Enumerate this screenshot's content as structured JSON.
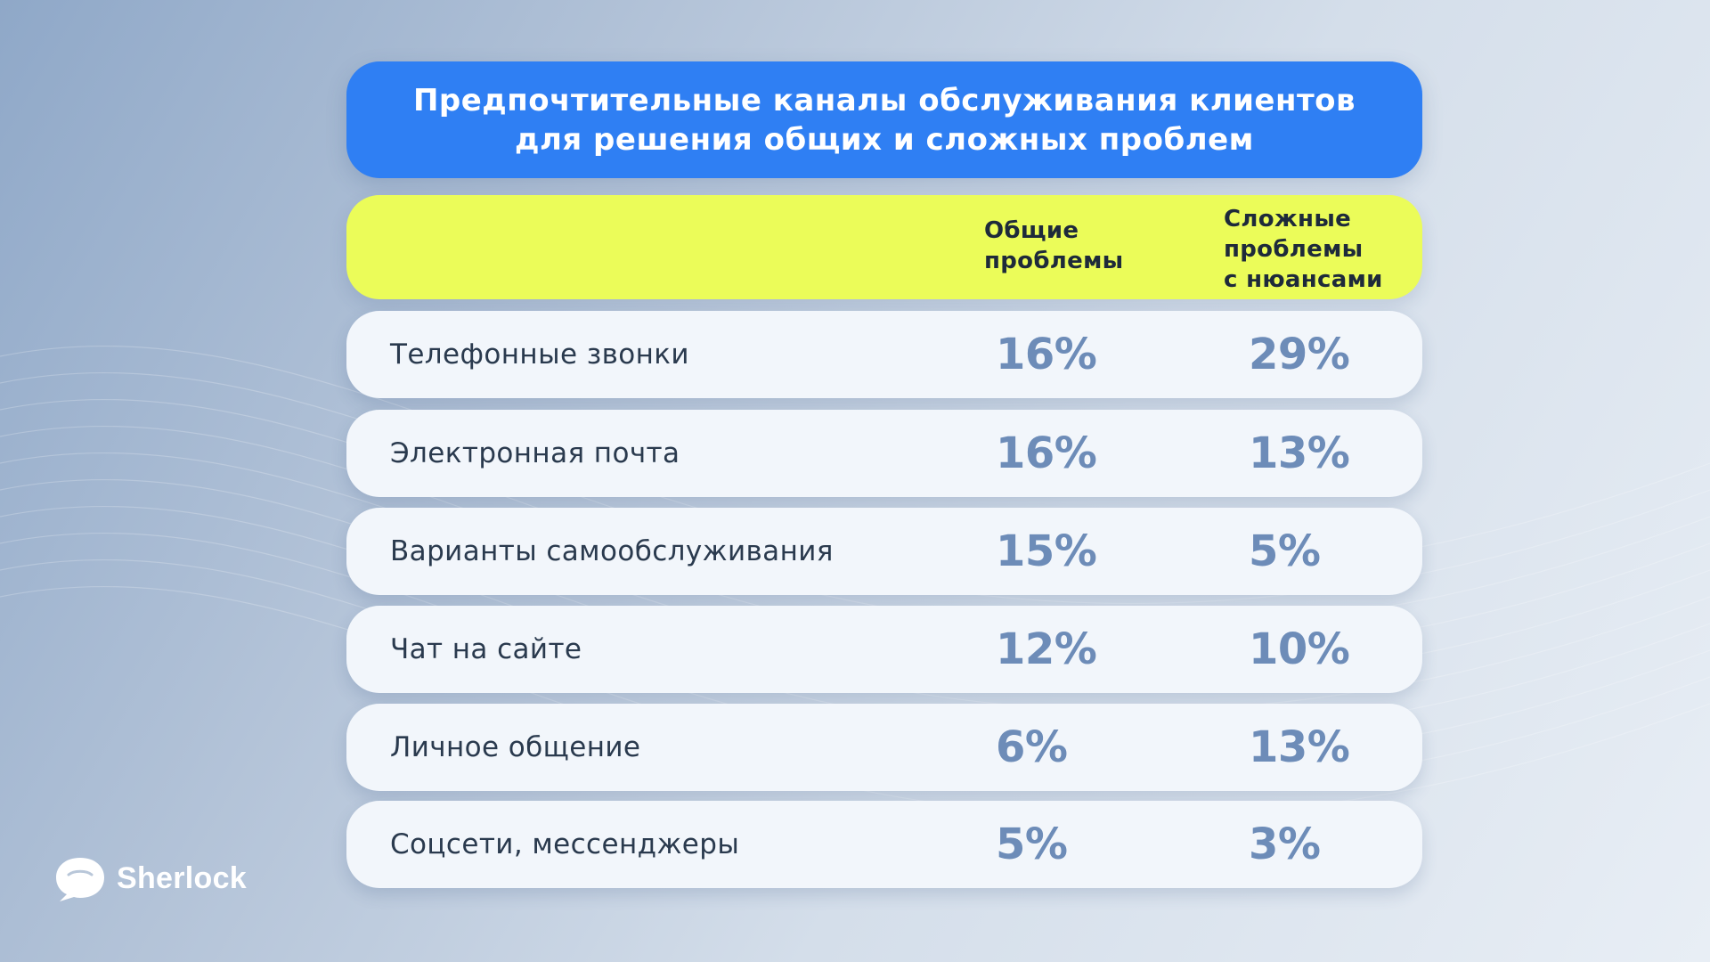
{
  "title": {
    "line1": "Предпочтительные каналы обслуживания клиентов",
    "line2": "для решения общих и сложных проблем"
  },
  "header": {
    "col1": [
      "Общие",
      "проблемы"
    ],
    "col2": [
      "Сложные",
      "проблемы",
      "с нюансами"
    ]
  },
  "rows": [
    {
      "label": "Телефонные звонки",
      "general": "16%",
      "complex": "29%"
    },
    {
      "label": "Электронная почта",
      "general": "16%",
      "complex": "13%"
    },
    {
      "label": "Варианты самообслуживания",
      "general": "15%",
      "complex": "5%"
    },
    {
      "label": "Чат на сайте",
      "general": "12%",
      "complex": "10%"
    },
    {
      "label": "Личное общение",
      "general": "6%",
      "complex": "13%"
    },
    {
      "label": "Соцсети, мессенджеры",
      "general": "5%",
      "complex": "3%"
    }
  ],
  "logo": {
    "text": "Sherlock",
    "icon": "chat-bubble-icon"
  },
  "colors": {
    "title_bg": "#2f7ff3",
    "header_bg": "#ebfc59",
    "row_bg": "#f2f6fb",
    "value_color": "#6d8cb8"
  },
  "chart_data": {
    "type": "table",
    "title": "Предпочтительные каналы обслуживания клиентов для решения общих и сложных проблем",
    "columns": [
      "Общие проблемы",
      "Сложные проблемы с нюансами"
    ],
    "categories": [
      "Телефонные звонки",
      "Электронная почта",
      "Варианты самообслуживания",
      "Чат на сайте",
      "Личное общение",
      "Соцсети, мессенджеры"
    ],
    "series": [
      {
        "name": "Общие проблемы",
        "values": [
          16,
          16,
          15,
          12,
          6,
          5
        ]
      },
      {
        "name": "Сложные проблемы с нюансами",
        "values": [
          29,
          13,
          5,
          10,
          13,
          3
        ]
      }
    ],
    "unit": "%"
  }
}
